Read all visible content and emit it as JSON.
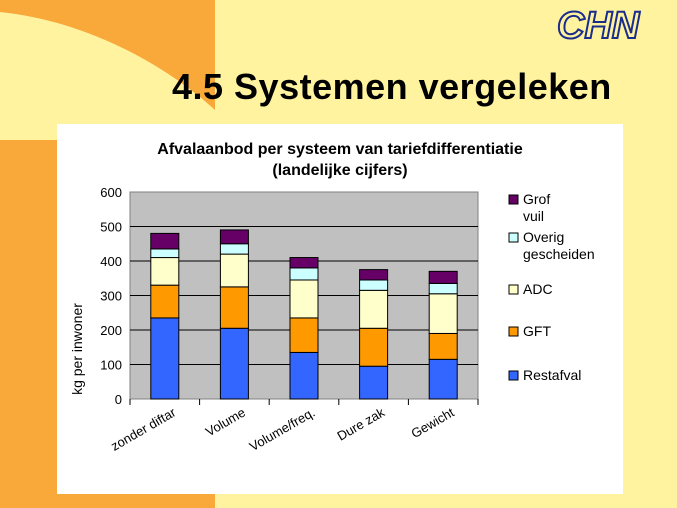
{
  "slide": {
    "title": "4.5 Systemen vergeleken",
    "logo_text": "CHN",
    "colors": {
      "background": "#FFF3A0",
      "accent": "#F9A83A",
      "logo": "#1A2D8C"
    }
  },
  "chart_data": {
    "type": "bar",
    "stacked": true,
    "title": "Afvalaanbod per systeem van tariefdifferentiatie",
    "subtitle": "(landelijke cijfers)",
    "xlabel": "",
    "ylabel": "kg per inwoner",
    "ylim": [
      0,
      600
    ],
    "yticks": [
      "0",
      "100",
      "200",
      "300",
      "400",
      "500",
      "600"
    ],
    "grid": true,
    "legend_position": "right",
    "categories": [
      "zonder diftar",
      "Volume",
      "Volume/freq.",
      "Dure zak",
      "Gewicht"
    ],
    "series": [
      {
        "name": "Restafval",
        "color": "#3366FF",
        "values": [
          235,
          205,
          135,
          95,
          115
        ]
      },
      {
        "name": "GFT",
        "color": "#FF9900",
        "values": [
          95,
          120,
          100,
          110,
          75
        ]
      },
      {
        "name": "ADC",
        "color": "#FFFFCC",
        "values": [
          80,
          95,
          110,
          110,
          115
        ]
      },
      {
        "name": "Overig gescheiden",
        "color": "#CCFFFF",
        "values": [
          25,
          30,
          35,
          30,
          30
        ]
      },
      {
        "name": "Grof vuil",
        "color": "#660066",
        "values": [
          45,
          40,
          30,
          30,
          35
        ]
      }
    ],
    "legend_order": [
      "Grof vuil",
      "Overig gescheiden",
      "ADC",
      "GFT",
      "Restafval"
    ]
  }
}
